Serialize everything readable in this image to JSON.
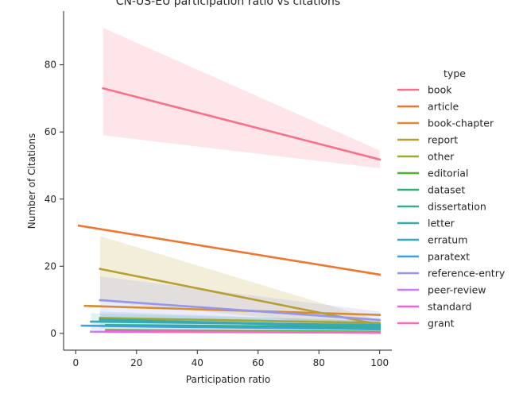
{
  "chart_data": {
    "type": "line",
    "title": "CN-US-EU participation ratio vs citations",
    "xlabel": "Participation ratio",
    "ylabel": "Number of Citations",
    "xlim": [
      -4,
      104
    ],
    "ylim": [
      -5,
      96
    ],
    "xticks": [
      0,
      20,
      40,
      60,
      80,
      100
    ],
    "yticks": [
      0,
      20,
      40,
      60,
      80
    ],
    "legend_title": "type",
    "legend_position": "right",
    "series": [
      {
        "name": "book",
        "color": "#f77189",
        "x": [
          9,
          100
        ],
        "y": [
          73,
          51.8
        ],
        "ci": {
          "x": [
            9,
            100
          ],
          "lower": [
            59,
            49.2
          ],
          "upper": [
            91,
            54.5
          ]
        }
      },
      {
        "name": "article",
        "color": "#ee7631",
        "x": [
          1,
          100
        ],
        "y": [
          32.1,
          17.5
        ]
      },
      {
        "name": "book-chapter",
        "color": "#d58c32",
        "x": [
          3,
          100
        ],
        "y": [
          8.2,
          5.5
        ]
      },
      {
        "name": "report",
        "color": "#b99e32",
        "x": [
          8,
          100
        ],
        "y": [
          19.2,
          2.6
        ],
        "ci": {
          "x": [
            8,
            100
          ],
          "lower": [
            9.5,
            1.5
          ],
          "upper": [
            29,
            3.8
          ]
        }
      },
      {
        "name": "other",
        "color": "#a0a932",
        "x": [
          8,
          100
        ],
        "y": [
          4.6,
          3.1
        ]
      },
      {
        "name": "editorial",
        "color": "#4fb132",
        "x": [
          10,
          100
        ],
        "y": [
          1.0,
          0.5
        ]
      },
      {
        "name": "dataset",
        "color": "#33b07a",
        "x": [
          10,
          100
        ],
        "y": [
          2.5,
          1.8
        ]
      },
      {
        "name": "dissertation",
        "color": "#35ae98",
        "x": [
          8,
          100
        ],
        "y": [
          4.2,
          1.8
        ]
      },
      {
        "name": "letter",
        "color": "#36abab",
        "x": [
          8,
          100
        ],
        "y": [
          4.0,
          2.2
        ]
      },
      {
        "name": "erratum",
        "color": "#38a8bd",
        "x": [
          5,
          100
        ],
        "y": [
          3.5,
          2.5
        ]
      },
      {
        "name": "paratext",
        "color": "#3aa1e3",
        "x": [
          2,
          100
        ],
        "y": [
          2.3,
          1.2
        ]
      },
      {
        "name": "reference-entry",
        "color": "#9597ee",
        "x": [
          8,
          100
        ],
        "y": [
          9.9,
          4.0
        ],
        "ci": {
          "x": [
            8,
            100
          ],
          "lower": [
            3.5,
            1.5
          ],
          "upper": [
            17,
            6.5
          ]
        }
      },
      {
        "name": "peer-review",
        "color": "#cc7aef",
        "x": [
          5,
          100
        ],
        "y": [
          0.5,
          0.2
        ]
      },
      {
        "name": "standard",
        "color": "#f461dd",
        "x": [
          10,
          100
        ],
        "y": [
          0.6,
          0.3
        ]
      },
      {
        "name": "grant",
        "color": "#f66bbd",
        "x": [
          25,
          100
        ],
        "y": [
          0.6,
          0.2
        ]
      }
    ],
    "bands": [
      {
        "color": "#38a8bd",
        "x": [
          5,
          100
        ],
        "lower": [
          1.0,
          1.0
        ],
        "upper": [
          6.0,
          3.8
        ]
      },
      {
        "color": "#36abab",
        "x": [
          8,
          100
        ],
        "lower": [
          1.5,
          1.2
        ],
        "upper": [
          6.5,
          3.5
        ]
      }
    ]
  }
}
